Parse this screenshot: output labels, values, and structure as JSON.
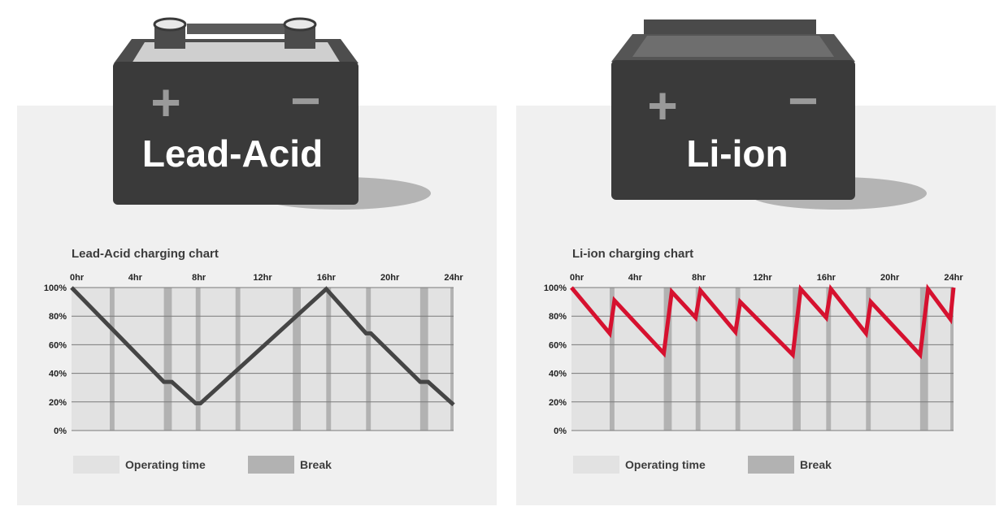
{
  "colors": {
    "panel_bg": "#f0f0f0",
    "operating": "#e2e2e2",
    "break": "#b2b2b2",
    "lead_acid_line": "#454545",
    "li_ion_line": "#d6112f",
    "battery_body": "#3a3a3a",
    "battery_text": "#ffffff"
  },
  "batteries": {
    "lead_acid": {
      "label": "Lead-Acid",
      "plus": "+",
      "minus": "−"
    },
    "li_ion": {
      "label": "Li-ion",
      "plus": "+",
      "minus": "−"
    }
  },
  "legend": {
    "operating_label": "Operating time",
    "break_label": "Break"
  },
  "chart_data": [
    {
      "type": "line",
      "title": "Lead-Acid charging chart",
      "xlabel": "",
      "ylabel": "",
      "x_ticks": [
        "0hr",
        "4hr",
        "8hr",
        "12hr",
        "16hr",
        "20hr",
        "24hr"
      ],
      "y_ticks": [
        "0%",
        "20%",
        "40%",
        "60%",
        "80%",
        "100%"
      ],
      "xlim": [
        0,
        24
      ],
      "ylim": [
        0,
        100
      ],
      "breaks": [
        [
          2.4,
          2.7
        ],
        [
          5.8,
          6.3
        ],
        [
          7.8,
          8.1
        ],
        [
          10.3,
          10.6
        ],
        [
          13.9,
          14.4
        ],
        [
          16.0,
          16.3
        ],
        [
          18.5,
          18.8
        ],
        [
          21.9,
          22.4
        ],
        [
          23.8,
          24.1
        ]
      ],
      "series": [
        {
          "x": [
            0,
            5.8,
            6.3,
            7.8,
            8.1,
            16.0,
            18.5,
            18.8,
            21.9,
            22.4,
            24.0
          ],
          "y": [
            100,
            34,
            34,
            19,
            19,
            99,
            68,
            68,
            34,
            34,
            18
          ]
        }
      ]
    },
    {
      "type": "line",
      "title": "Li-ion charging chart",
      "xlabel": "",
      "ylabel": "",
      "x_ticks": [
        "0hr",
        "4hr",
        "8hr",
        "12hr",
        "16hr",
        "20hr",
        "24hr"
      ],
      "y_ticks": [
        "0%",
        "20%",
        "40%",
        "60%",
        "80%",
        "100%"
      ],
      "xlim": [
        0,
        24
      ],
      "ylim": [
        0,
        100
      ],
      "breaks": [
        [
          2.4,
          2.7
        ],
        [
          5.8,
          6.3
        ],
        [
          7.8,
          8.1
        ],
        [
          10.3,
          10.6
        ],
        [
          13.9,
          14.4
        ],
        [
          16.0,
          16.3
        ],
        [
          18.5,
          18.8
        ],
        [
          21.9,
          22.4
        ],
        [
          23.8,
          24.1
        ]
      ],
      "series": [
        {
          "x": [
            0,
            2.4,
            2.7,
            5.8,
            6.3,
            7.8,
            8.1,
            10.3,
            10.6,
            13.9,
            14.4,
            16.0,
            16.3,
            18.5,
            18.8,
            21.9,
            22.4,
            23.8,
            24.0
          ],
          "y": [
            100,
            68,
            91,
            54,
            97,
            79,
            98,
            69,
            90,
            53,
            99,
            79,
            99,
            68,
            90,
            53,
            99,
            78,
            100
          ]
        }
      ]
    }
  ]
}
